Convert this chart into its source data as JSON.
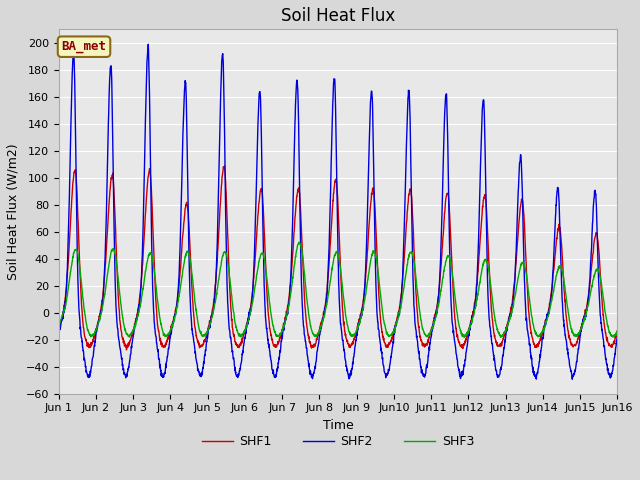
{
  "title": "Soil Heat Flux",
  "ylabel": "Soil Heat Flux (W/m2)",
  "xlabel": "Time",
  "ylim": [
    -60,
    210
  ],
  "yticks": [
    -60,
    -40,
    -20,
    0,
    20,
    40,
    60,
    80,
    100,
    120,
    140,
    160,
    180,
    200
  ],
  "colors": {
    "SHF1": "#cc0000",
    "SHF2": "#0000dd",
    "SHF3": "#00aa00"
  },
  "legend_label": "BA_met",
  "bg_color": "#d8d8d8",
  "plot_bg_color": "#e8e8e8",
  "days": 15,
  "points_per_day": 144,
  "shf1_day_peaks": [
    107,
    103,
    107,
    82,
    110,
    93,
    93,
    100,
    93,
    93,
    90,
    88,
    85,
    65,
    60
  ],
  "shf2_day_peaks": [
    193,
    185,
    197,
    172,
    193,
    165,
    173,
    175,
    165,
    165,
    163,
    160,
    117,
    93,
    91
  ],
  "shf3_day_peaks": [
    50,
    50,
    47,
    48,
    48,
    47,
    55,
    48,
    48,
    48,
    45,
    42,
    40,
    37,
    35
  ],
  "shf1_night_val": -25,
  "shf2_night_val": -47,
  "shf3_night_val": -18,
  "title_fontsize": 12,
  "axis_label_fontsize": 9,
  "tick_fontsize": 8,
  "line_width": 1.0
}
